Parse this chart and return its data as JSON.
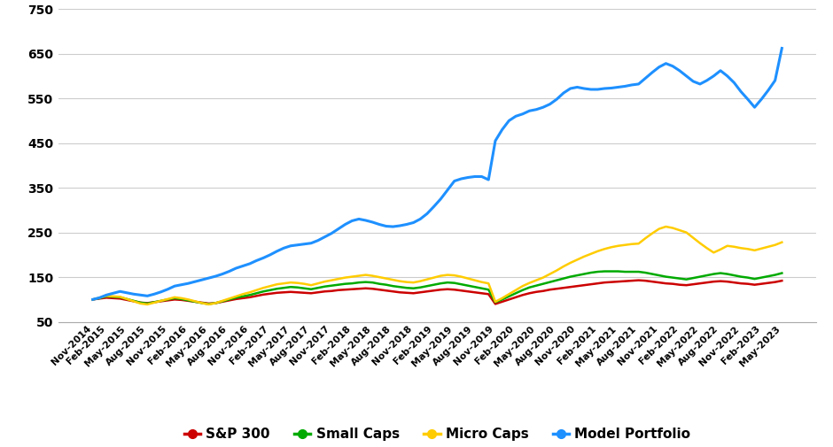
{
  "background_color": "#ffffff",
  "grid_color": "#cccccc",
  "ylim": [
    50,
    750
  ],
  "yticks": [
    50,
    150,
    250,
    350,
    450,
    550,
    650,
    750
  ],
  "series": {
    "S&P 300": {
      "color": "#cc0000",
      "linewidth": 1.8,
      "values": [
        100,
        102,
        104,
        103,
        102,
        99,
        96,
        93,
        92,
        94,
        96,
        98,
        100,
        99,
        97,
        95,
        93,
        91,
        92,
        95,
        98,
        101,
        103,
        105,
        108,
        111,
        113,
        115,
        116,
        117,
        116,
        115,
        114,
        116,
        118,
        119,
        121,
        122,
        123,
        124,
        125,
        124,
        122,
        120,
        118,
        116,
        115,
        114,
        116,
        118,
        120,
        122,
        123,
        122,
        120,
        118,
        116,
        114,
        112,
        90,
        95,
        100,
        105,
        110,
        114,
        117,
        119,
        122,
        124,
        126,
        128,
        130,
        132,
        134,
        136,
        138,
        139,
        140,
        141,
        142,
        143,
        142,
        140,
        138,
        136,
        135,
        133,
        132,
        134,
        136,
        138,
        140,
        141,
        140,
        138,
        136,
        135,
        133,
        135,
        137,
        139,
        142
      ]
    },
    "Small Caps": {
      "color": "#00aa00",
      "linewidth": 1.8,
      "values": [
        100,
        103,
        107,
        106,
        105,
        101,
        97,
        93,
        91,
        94,
        97,
        100,
        103,
        101,
        98,
        95,
        92,
        90,
        92,
        96,
        100,
        104,
        107,
        110,
        114,
        118,
        121,
        124,
        126,
        128,
        127,
        125,
        123,
        126,
        129,
        131,
        133,
        135,
        136,
        138,
        139,
        138,
        135,
        133,
        130,
        128,
        126,
        125,
        127,
        130,
        133,
        136,
        138,
        137,
        134,
        131,
        128,
        125,
        122,
        94,
        100,
        107,
        114,
        121,
        127,
        131,
        135,
        139,
        143,
        147,
        151,
        154,
        157,
        160,
        162,
        163,
        163,
        163,
        162,
        162,
        162,
        160,
        157,
        154,
        151,
        149,
        147,
        145,
        148,
        151,
        154,
        157,
        159,
        157,
        154,
        151,
        149,
        146,
        149,
        152,
        155,
        159
      ]
    },
    "Micro Caps": {
      "color": "#ffcc00",
      "linewidth": 1.8,
      "values": [
        100,
        104,
        108,
        107,
        106,
        101,
        96,
        91,
        89,
        93,
        97,
        101,
        105,
        103,
        100,
        96,
        92,
        89,
        92,
        97,
        102,
        107,
        112,
        116,
        121,
        126,
        130,
        134,
        136,
        138,
        137,
        135,
        132,
        136,
        140,
        143,
        146,
        149,
        151,
        153,
        155,
        153,
        150,
        147,
        144,
        141,
        139,
        138,
        141,
        145,
        149,
        153,
        155,
        154,
        151,
        147,
        143,
        139,
        136,
        95,
        103,
        112,
        121,
        130,
        137,
        143,
        149,
        157,
        165,
        174,
        182,
        189,
        196,
        202,
        208,
        213,
        217,
        220,
        222,
        224,
        225,
        237,
        248,
        258,
        263,
        260,
        255,
        250,
        238,
        226,
        215,
        205,
        212,
        220,
        218,
        215,
        213,
        210,
        214,
        218,
        222,
        228
      ]
    },
    "Model Portfolio": {
      "color": "#1e90ff",
      "linewidth": 2.2,
      "values": [
        100,
        104,
        110,
        114,
        118,
        115,
        112,
        110,
        108,
        112,
        117,
        123,
        130,
        133,
        136,
        140,
        144,
        148,
        152,
        157,
        163,
        170,
        175,
        180,
        187,
        193,
        200,
        208,
        215,
        220,
        222,
        224,
        226,
        232,
        240,
        248,
        258,
        268,
        276,
        280,
        277,
        273,
        268,
        264,
        263,
        265,
        268,
        272,
        280,
        292,
        308,
        325,
        345,
        365,
        370,
        373,
        375,
        375,
        368,
        455,
        480,
        500,
        510,
        515,
        522,
        525,
        530,
        537,
        548,
        562,
        572,
        575,
        572,
        570,
        570,
        572,
        573,
        575,
        577,
        580,
        582,
        595,
        608,
        620,
        628,
        622,
        612,
        600,
        588,
        582,
        590,
        600,
        612,
        600,
        585,
        565,
        548,
        530,
        548,
        568,
        590,
        662
      ]
    }
  },
  "tick_labels": [
    "Nov-2014",
    "Feb-2015",
    "May-2015",
    "Aug-2015",
    "Nov-2015",
    "Feb-2016",
    "May-2016",
    "Aug-2016",
    "Nov-2016",
    "Feb-2017",
    "May-2017",
    "Aug-2017",
    "Nov-2017",
    "Feb-2018",
    "May-2018",
    "Aug-2018",
    "Nov-2018",
    "Feb-2019",
    "May-2019",
    "Aug-2019",
    "Nov-2019",
    "Feb-2020",
    "May-2020",
    "Aug-2020",
    "Nov-2020",
    "Feb-2021",
    "May-2021",
    "Aug-2021",
    "Nov-2021",
    "Feb-2022",
    "May-2022",
    "Aug-2022",
    "Nov-2022",
    "Feb-2023",
    "May-2023"
  ]
}
